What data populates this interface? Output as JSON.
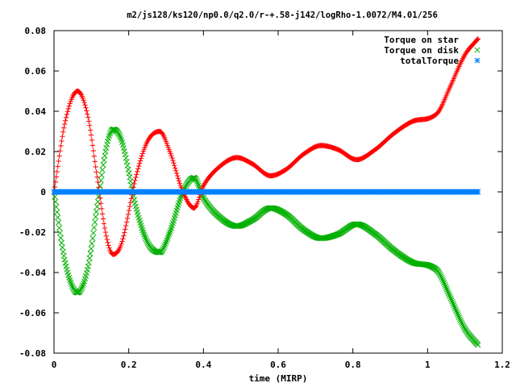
{
  "chart_data": {
    "type": "scatter",
    "title": "m2/js128/ks120/np0.0/q2.0/r-+.58-j142/logRho-1.0072/M4.01/256",
    "xlabel": "time (MIRP)",
    "ylabel": "",
    "xlim": [
      0,
      1.2
    ],
    "ylim": [
      -0.08,
      0.08
    ],
    "xticks": [
      "0",
      "0.2",
      "0.4",
      "0.6",
      "0.8",
      "1",
      "1.2"
    ],
    "yticks": [
      "0.08",
      "0.06",
      "0.04",
      "0.02",
      "0",
      "-0.02",
      "-0.04",
      "-0.06",
      "-0.08"
    ],
    "legend_position": "top-right",
    "grid": false,
    "x_range_of_data": [
      0,
      1.135
    ],
    "series": [
      {
        "name": "Torque on star",
        "marker": "+",
        "color": "#ff0000",
        "x": [
          0,
          0.03,
          0.063,
          0.09,
          0.115,
          0.14,
          0.158,
          0.18,
          0.22,
          0.25,
          0.283,
          0.31,
          0.345,
          0.375,
          0.4,
          0.44,
          0.49,
          0.53,
          0.58,
          0.62,
          0.67,
          0.715,
          0.76,
          0.81,
          0.86,
          0.91,
          0.96,
          1.01,
          1.03,
          1.06,
          1.1,
          1.135
        ],
        "y": [
          0,
          0.035,
          0.05,
          0.038,
          0.008,
          -0.022,
          -0.031,
          -0.026,
          0.008,
          0.025,
          0.03,
          0.02,
          0.0,
          -0.008,
          0.003,
          0.012,
          0.017,
          0.014,
          0.008,
          0.011,
          0.019,
          0.023,
          0.021,
          0.016,
          0.021,
          0.029,
          0.035,
          0.037,
          0.04,
          0.052,
          0.068,
          0.076
        ]
      },
      {
        "name": "Torque on disk",
        "marker": "x",
        "color": "#00b000",
        "x": [
          0,
          0.03,
          0.063,
          0.09,
          0.115,
          0.14,
          0.158,
          0.18,
          0.22,
          0.25,
          0.283,
          0.31,
          0.345,
          0.375,
          0.4,
          0.44,
          0.49,
          0.53,
          0.58,
          0.62,
          0.67,
          0.715,
          0.76,
          0.81,
          0.86,
          0.91,
          0.96,
          1.01,
          1.03,
          1.06,
          1.1,
          1.135
        ],
        "y": [
          0,
          -0.035,
          -0.05,
          -0.038,
          -0.008,
          0.022,
          0.031,
          0.026,
          -0.008,
          -0.025,
          -0.03,
          -0.02,
          0.0,
          0.007,
          -0.003,
          -0.012,
          -0.017,
          -0.014,
          -0.008,
          -0.011,
          -0.019,
          -0.023,
          -0.021,
          -0.016,
          -0.021,
          -0.029,
          -0.035,
          -0.037,
          -0.04,
          -0.052,
          -0.068,
          -0.076
        ]
      },
      {
        "name": "totalTorque",
        "marker": "*",
        "color": "#0080ff",
        "x": [
          0,
          1.135
        ],
        "y": [
          0,
          0
        ]
      }
    ]
  }
}
